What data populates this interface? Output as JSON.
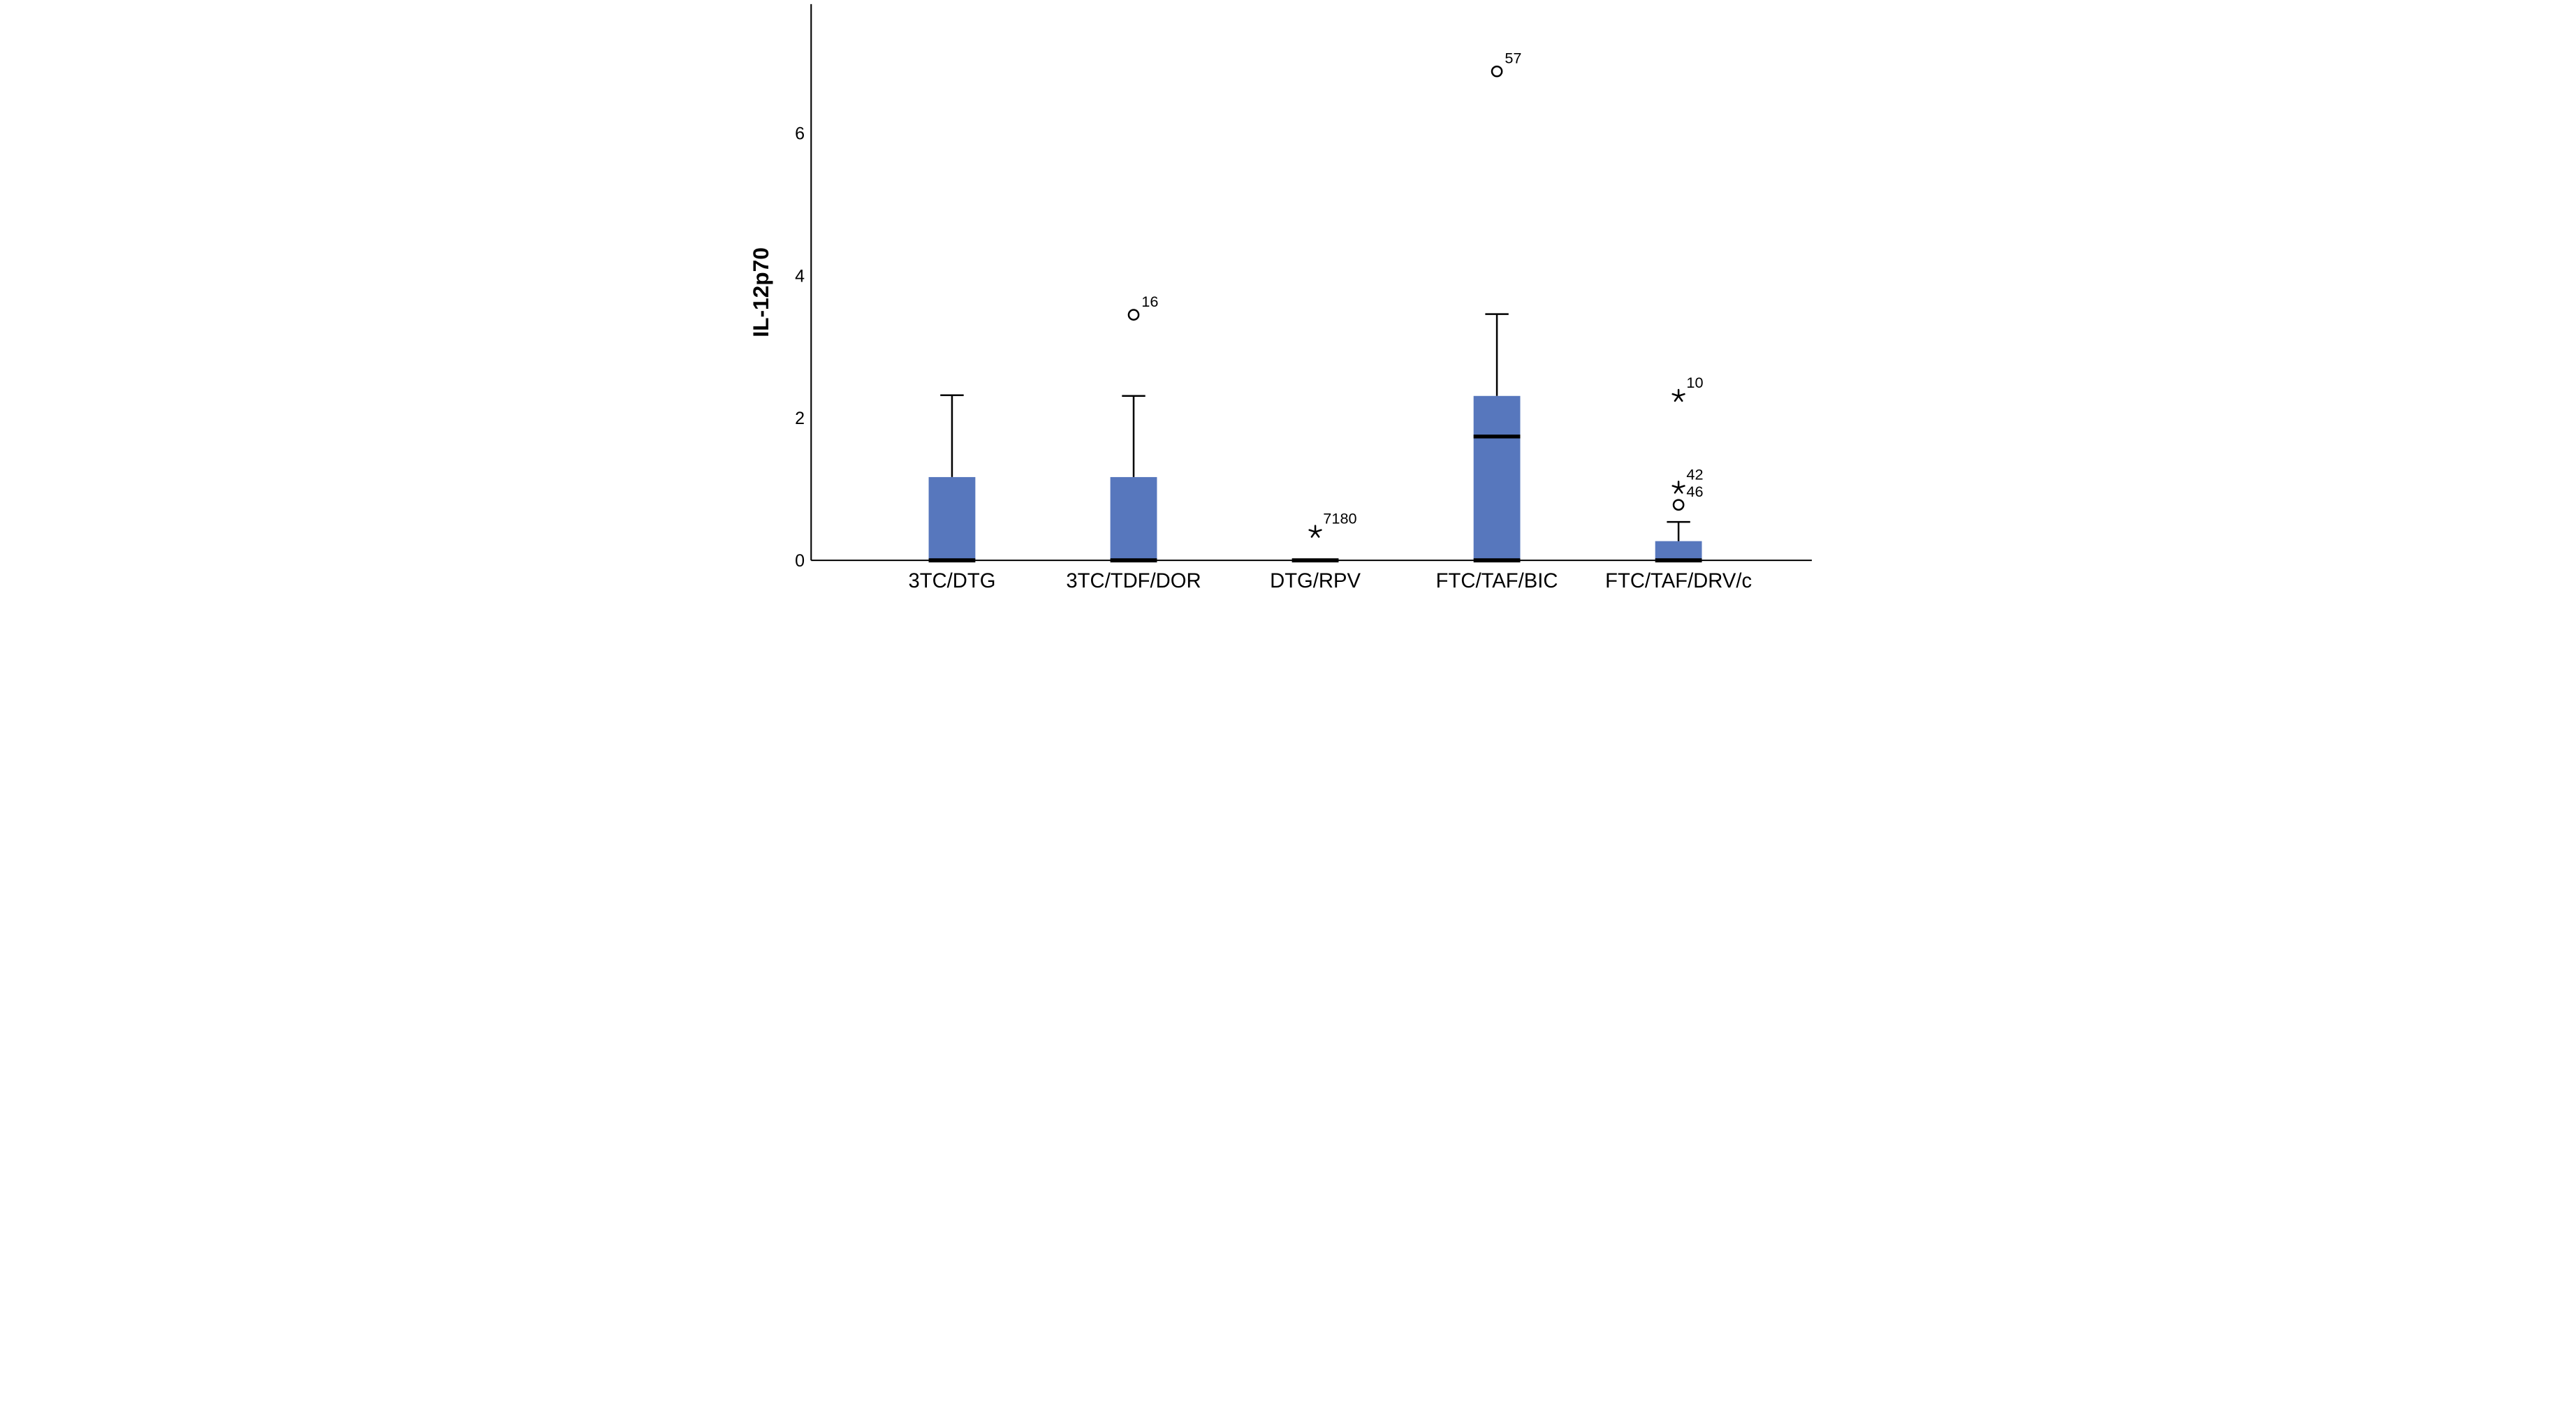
{
  "chart_data": {
    "type": "boxplot",
    "title": "",
    "ylabel": "IL-12p70",
    "xlabel": "",
    "ylim": [
      0,
      7.82
    ],
    "yticks": [
      "0",
      "2",
      "4",
      "6"
    ],
    "ytick_values": [
      0,
      2,
      4,
      6
    ],
    "grid": "off",
    "legend": "none",
    "categories": [
      "3TC/DTG",
      "3TC/TDF/DOR",
      "DTG/RPV",
      "FTC/TAF/BIC",
      "FTC/TAF/DRV/c"
    ],
    "boxes": [
      {
        "category": "3TC/DTG",
        "whisker_low": 0,
        "q1": 0,
        "median": 0,
        "q3": 1.17,
        "whisker_high": 2.32,
        "outliers": []
      },
      {
        "category": "3TC/TDF/DOR",
        "whisker_low": 0,
        "q1": 0,
        "median": 0,
        "q3": 1.17,
        "whisker_high": 2.31,
        "outliers": [
          {
            "value": 3.45,
            "label": "16",
            "marker": "circle"
          }
        ]
      },
      {
        "category": "DTG/RPV",
        "whisker_low": 0,
        "q1": 0,
        "median": 0,
        "q3": 0,
        "whisker_high": 0,
        "outliers": [
          {
            "value": 0.4,
            "label": "7180",
            "marker": "star"
          }
        ]
      },
      {
        "category": "FTC/TAF/BIC",
        "whisker_low": 0,
        "q1": 0,
        "median": 1.74,
        "q3": 2.31,
        "whisker_high": 3.46,
        "outliers": [
          {
            "value": 6.87,
            "label": "57",
            "marker": "circle"
          }
        ]
      },
      {
        "category": "FTC/TAF/DRV/c",
        "whisker_low": 0,
        "q1": 0,
        "median": 0,
        "q3": 0.27,
        "whisker_high": 0.54,
        "outliers": [
          {
            "value": 0.78,
            "label": "46",
            "marker": "circle"
          },
          {
            "value": 1.02,
            "label": "42",
            "marker": "star"
          },
          {
            "value": 2.31,
            "label": "10",
            "marker": "star"
          }
        ]
      }
    ],
    "colors": {
      "box_fill": "#5777bd",
      "line": "#000000",
      "background": "#ffffff"
    }
  }
}
